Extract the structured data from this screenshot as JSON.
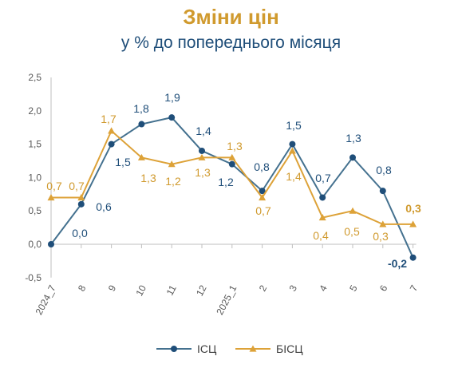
{
  "title": "Зміни цін",
  "subtitle": "у % до попереднього місяця",
  "chart_data": {
    "type": "line",
    "categories": [
      "2024_7",
      "8",
      "9",
      "10",
      "11",
      "12",
      "2025_1",
      "2",
      "3",
      "4",
      "5",
      "6",
      "7"
    ],
    "ylim": [
      -0.5,
      2.5
    ],
    "yticks": [
      "-0,5",
      "0,0",
      "0,5",
      "1,0",
      "1,5",
      "2,0",
      "2,5"
    ],
    "grid": false,
    "legend_position": "bottom",
    "series": [
      {
        "name": "ІСЦ",
        "color": "#44718F",
        "marker": "circle",
        "values": [
          0.0,
          0.6,
          1.5,
          1.8,
          1.9,
          1.4,
          1.2,
          0.8,
          1.5,
          0.7,
          1.3,
          0.8,
          -0.2
        ],
        "labels": [
          "0,0",
          "0,6",
          "1,5",
          "1,8",
          "1,9",
          "1,4",
          "1,2",
          "0,8",
          "1,5",
          "0,7",
          "1,3",
          "0,8",
          "-0,2"
        ]
      },
      {
        "name": "БІСЦ",
        "color": "#DDA238",
        "marker": "triangle",
        "values": [
          0.7,
          0.7,
          1.7,
          1.3,
          1.2,
          1.3,
          1.3,
          0.7,
          1.4,
          0.4,
          0.5,
          0.3,
          0.3
        ],
        "labels": [
          "0,7",
          "0,7",
          "1,7",
          "1,3",
          "1,2",
          "1,3",
          "1,3",
          "0,7",
          "1,4",
          "0,4",
          "0,5",
          "0,3",
          "0,3"
        ]
      }
    ]
  }
}
